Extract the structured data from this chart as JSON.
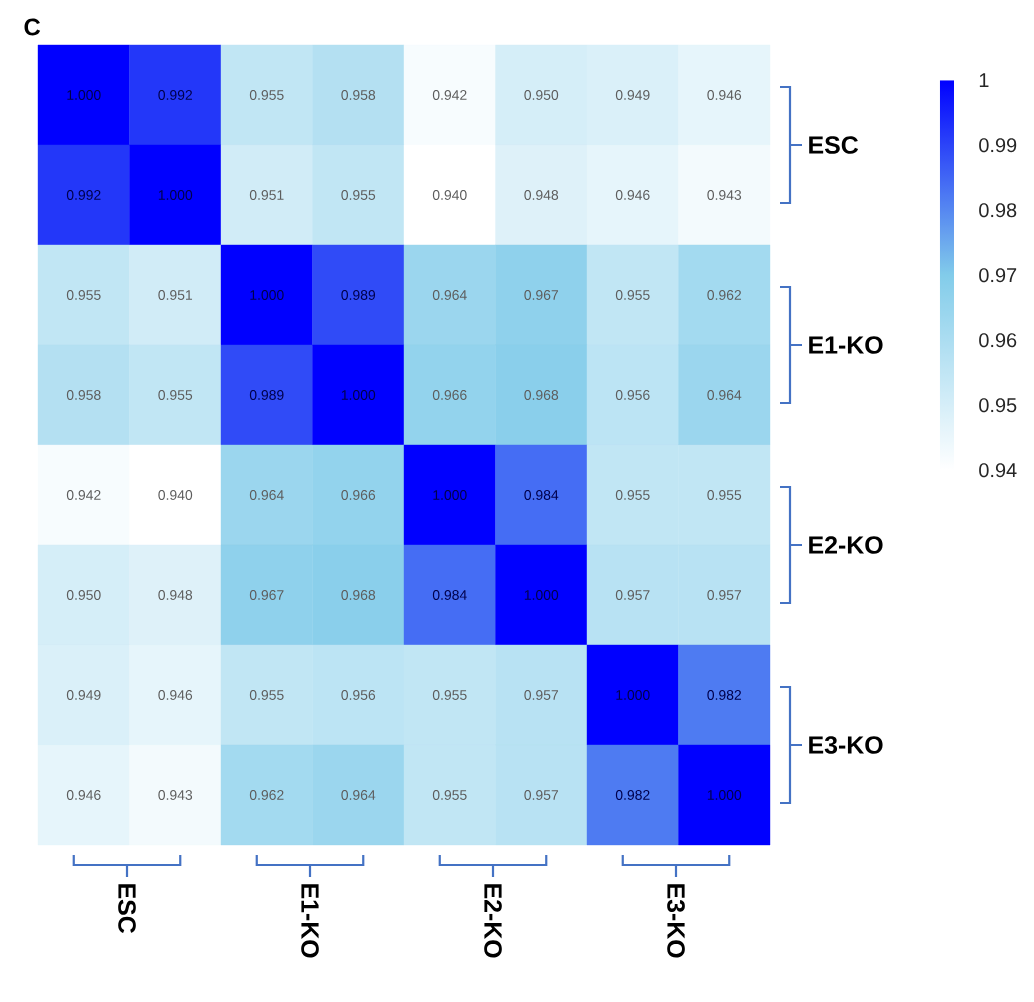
{
  "chart_data": {
    "type": "heatmap",
    "title": "C",
    "categories": [
      null,
      null,
      null,
      null,
      null,
      null,
      null,
      null
    ],
    "y_categories": [
      null,
      null,
      null,
      null,
      null,
      null,
      null,
      null
    ],
    "cells": [
      [
        1.0,
        0.992,
        0.955,
        0.958,
        0.942,
        0.95,
        0.949,
        0.946
      ],
      [
        0.992,
        1.0,
        0.951,
        0.955,
        0.94,
        0.948,
        0.946,
        0.943
      ],
      [
        0.955,
        0.951,
        1.0,
        0.989,
        0.964,
        0.967,
        0.955,
        0.962
      ],
      [
        0.958,
        0.955,
        0.989,
        1.0,
        0.966,
        0.968,
        0.956,
        0.964
      ],
      [
        0.942,
        0.94,
        0.964,
        0.966,
        1.0,
        0.984,
        0.955,
        0.955
      ],
      [
        0.95,
        0.948,
        0.967,
        0.968,
        0.984,
        1.0,
        0.957,
        0.957
      ],
      [
        0.949,
        0.946,
        0.955,
        0.956,
        0.955,
        0.957,
        1.0,
        0.982
      ],
      [
        0.946,
        0.943,
        0.962,
        0.964,
        0.955,
        0.957,
        0.982,
        1.0
      ]
    ],
    "cell_labels": [
      [
        "1.000",
        "0.992",
        "0.955",
        "0.958",
        "0.942",
        "0.950",
        "0.949",
        "0.946"
      ],
      [
        "0.992",
        "1.000",
        "0.951",
        "0.955",
        "0.940",
        "0.948",
        "0.946",
        "0.943"
      ],
      [
        "0.955",
        "0.951",
        "1.000",
        "0.989",
        "0.964",
        "0.967",
        "0.955",
        "0.962"
      ],
      [
        "0.958",
        "0.955",
        "0.989",
        "1.000",
        "0.966",
        "0.968",
        "0.956",
        "0.964"
      ],
      [
        "0.942",
        "0.940",
        "0.964",
        "0.966",
        "1.000",
        "0.984",
        "0.955",
        "0.955"
      ],
      [
        "0.950",
        "0.948",
        "0.967",
        "0.968",
        "0.984",
        "1.000",
        "0.957",
        "0.957"
      ],
      [
        "0.949",
        "0.946",
        "0.955",
        "0.956",
        "0.955",
        "0.957",
        "1.000",
        "0.982"
      ],
      [
        "0.946",
        "0.943",
        "0.962",
        "0.964",
        "0.955",
        "0.957",
        "0.982",
        "1.000"
      ]
    ],
    "clim": [
      0.94,
      1
    ],
    "cticks": [
      0.94,
      0.95,
      0.96,
      0.97,
      0.98,
      0.99,
      1
    ],
    "annotations": [
      "ESC",
      "E1-KO",
      "E2-KO",
      "E3-KO",
      "ESC",
      "E1-KO",
      "E2-KO",
      "E3-KO"
    ]
  }
}
